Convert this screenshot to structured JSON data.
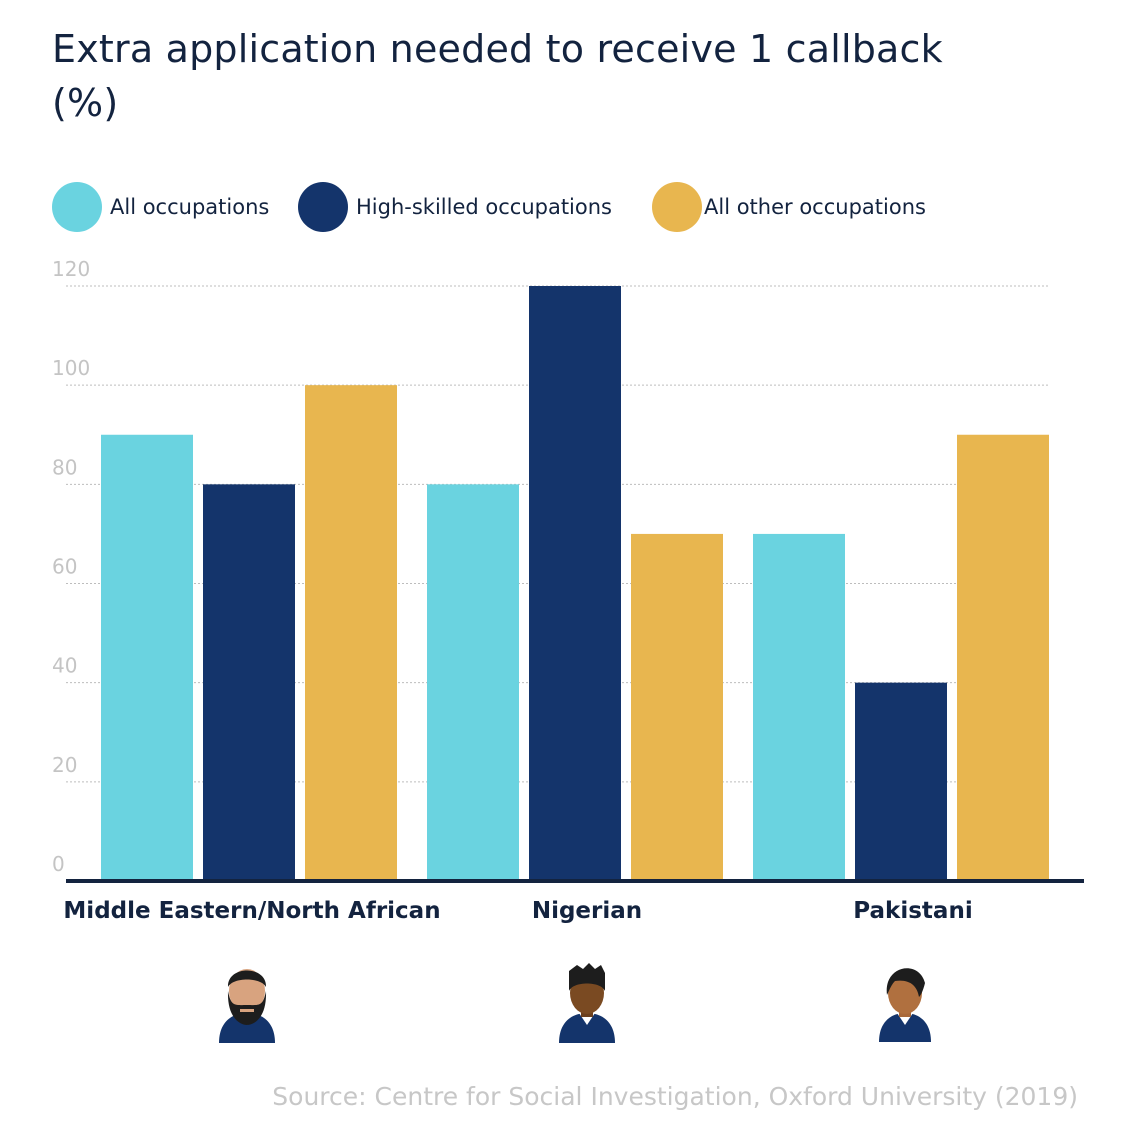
{
  "chart_data": {
    "type": "bar",
    "title": "Extra application needed to receive 1 callback (%)",
    "categories": [
      "Middle Eastern/North African",
      "Nigerian",
      "Pakistani"
    ],
    "series": [
      {
        "name": "All occupations",
        "color": "#6ad3e0",
        "values": [
          90,
          80,
          70
        ]
      },
      {
        "name": "High-skilled occupations",
        "color": "#14346b",
        "values": [
          80,
          120,
          40
        ]
      },
      {
        "name": "All other occupations",
        "color": "#e8b64f",
        "values": [
          100,
          70,
          90
        ]
      }
    ],
    "y_ticks": [
      0,
      20,
      40,
      60,
      80,
      100,
      120
    ],
    "ylim": [
      0,
      120
    ],
    "grid": true,
    "legend_position": "top-left",
    "xlabel": "",
    "ylabel": ""
  },
  "source": "Source: Centre for Social Investigation, Oxford University (2019)",
  "icons": [
    "bearded-man-avatar-icon",
    "african-man-avatar-icon",
    "south-asian-man-avatar-icon"
  ]
}
